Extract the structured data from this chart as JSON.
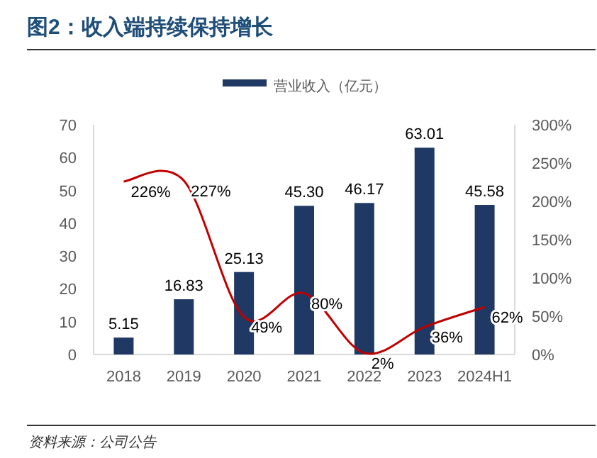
{
  "chart_data": {
    "type": "bar",
    "title": "图2：收入端持续保持增长",
    "categories": [
      "2018",
      "2019",
      "2020",
      "2021",
      "2022",
      "2023",
      "2024H1"
    ],
    "series": [
      {
        "name": "营业收入（亿元）",
        "color": "#1f3864",
        "values": [
          5.15,
          16.83,
          25.13,
          45.3,
          46.17,
          63.01,
          45.58
        ],
        "value_labels": [
          "5.15",
          "16.83",
          "25.13",
          "45.30",
          "46.17",
          "63.01",
          "45.58"
        ]
      },
      {
        "type": "line",
        "axis": "y2",
        "color": "#c00000",
        "values": [
          226,
          227,
          49,
          80,
          2,
          36,
          62
        ],
        "value_labels": [
          "226%",
          "227%",
          "49%",
          "80%",
          "2%",
          "36%",
          "62%"
        ]
      }
    ],
    "ylim": [
      0,
      70
    ],
    "yticks": [
      0,
      10,
      20,
      30,
      40,
      50,
      60,
      70
    ],
    "y2lim": [
      0,
      300
    ],
    "y2ticks": [
      {
        "value": 0,
        "label": "0%"
      },
      {
        "value": 50,
        "label": "50%"
      },
      {
        "value": 100,
        "label": "100%"
      },
      {
        "value": 150,
        "label": "150%"
      },
      {
        "value": 200,
        "label": "200%"
      },
      {
        "value": 250,
        "label": "250%"
      },
      {
        "value": 300,
        "label": "300%"
      }
    ],
    "legend": "top",
    "grid": false,
    "annotations": [
      "资料来源：公司公告"
    ]
  }
}
